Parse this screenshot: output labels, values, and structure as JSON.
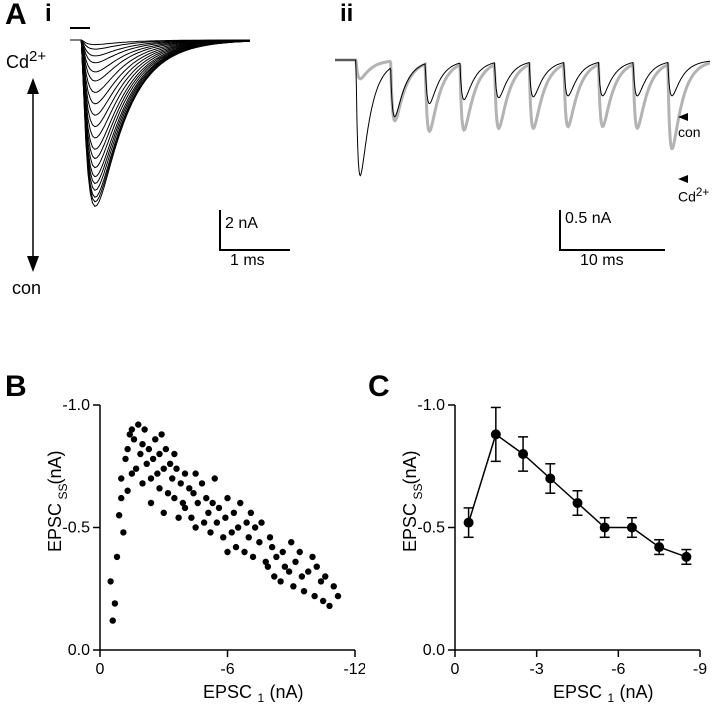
{
  "panelA": {
    "label": "A",
    "sub_i": "i",
    "sub_ii": "ii",
    "arrow_top_label": "Cd",
    "arrow_top_sup": "2+",
    "arrow_bottom_label": "con",
    "trace_annot_con": "con",
    "trace_annot_cd": "Cd",
    "trace_annot_cd_sup": "2+",
    "Ai": {
      "scalebar_v_value": "2 nA",
      "scalebar_h_value": "1 ms",
      "trace_count": 20,
      "trace_color": "#000000",
      "t_range_ms": 3.0,
      "peak_time_ms": 0.6,
      "amplitudes_nA": [
        0.2,
        0.4,
        0.7,
        1.0,
        1.4,
        1.8,
        2.3,
        2.8,
        3.3,
        3.8,
        4.3,
        4.8,
        5.2,
        5.6,
        6.0,
        6.3,
        6.6,
        6.9,
        7.1,
        7.3
      ],
      "tau_decay_ms": 0.5,
      "rise_ms": 0.15
    },
    "Aii": {
      "scalebar_v_value": "0.5 nA",
      "scalebar_h_value": "10 ms",
      "train_n_pulses": 10,
      "interval_ms": 3.3,
      "con_color": "#000000",
      "cd_color": "#b3b3b3",
      "con_amplitudes_nA": [
        1.35,
        0.6,
        0.48,
        0.44,
        0.42,
        0.41,
        0.4,
        0.4,
        0.4,
        0.4
      ],
      "cd_amplitudes_nA": [
        0.22,
        0.7,
        0.8,
        0.78,
        0.76,
        0.76,
        0.74,
        0.74,
        0.76,
        1.0
      ],
      "tau_decay_ms": 1.0,
      "rise_ms": 0.25
    }
  },
  "panelB": {
    "label": "B",
    "xlabel": "EPSC₁ (nA)",
    "ylabel": "EPSC_ss (nA)",
    "ylabel_plain": "EPSC",
    "ylabel_sub": "SS",
    "ylabel_unit": "(nA)",
    "xlim": [
      0,
      -12
    ],
    "ylim": [
      0.0,
      -1.0
    ],
    "xticks": [
      0,
      -6,
      -12
    ],
    "yticks": [
      0.0,
      -0.5,
      -1.0
    ],
    "marker_color": "#000000",
    "marker_radius": 3.2,
    "points": [
      [
        -0.5,
        -0.28
      ],
      [
        -0.6,
        -0.12
      ],
      [
        -0.7,
        -0.19
      ],
      [
        -0.8,
        -0.38
      ],
      [
        -0.9,
        -0.55
      ],
      [
        -1.0,
        -0.62
      ],
      [
        -1.0,
        -0.7
      ],
      [
        -1.1,
        -0.48
      ],
      [
        -1.2,
        -0.78
      ],
      [
        -1.3,
        -0.82
      ],
      [
        -1.3,
        -0.65
      ],
      [
        -1.4,
        -0.88
      ],
      [
        -1.5,
        -0.72
      ],
      [
        -1.5,
        -0.9
      ],
      [
        -1.6,
        -0.86
      ],
      [
        -1.7,
        -0.74
      ],
      [
        -1.8,
        -0.92
      ],
      [
        -1.9,
        -0.8
      ],
      [
        -2.0,
        -0.84
      ],
      [
        -2.0,
        -0.68
      ],
      [
        -2.1,
        -0.9
      ],
      [
        -2.2,
        -0.76
      ],
      [
        -2.3,
        -0.82
      ],
      [
        -2.4,
        -0.7
      ],
      [
        -2.4,
        -0.6
      ],
      [
        -2.5,
        -0.78
      ],
      [
        -2.6,
        -0.86
      ],
      [
        -2.7,
        -0.72
      ],
      [
        -2.8,
        -0.8
      ],
      [
        -2.8,
        -0.66
      ],
      [
        -2.9,
        -0.88
      ],
      [
        -3.0,
        -0.74
      ],
      [
        -3.0,
        -0.56
      ],
      [
        -3.1,
        -0.82
      ],
      [
        -3.2,
        -0.64
      ],
      [
        -3.3,
        -0.76
      ],
      [
        -3.4,
        -0.7
      ],
      [
        -3.5,
        -0.62
      ],
      [
        -3.5,
        -0.8
      ],
      [
        -3.6,
        -0.74
      ],
      [
        -3.7,
        -0.54
      ],
      [
        -3.8,
        -0.68
      ],
      [
        -3.9,
        -0.6
      ],
      [
        -4.0,
        -0.72
      ],
      [
        -4.0,
        -0.58
      ],
      [
        -4.2,
        -0.66
      ],
      [
        -4.3,
        -0.54
      ],
      [
        -4.4,
        -0.64
      ],
      [
        -4.5,
        -0.72
      ],
      [
        -4.5,
        -0.5
      ],
      [
        -4.6,
        -0.6
      ],
      [
        -4.8,
        -0.68
      ],
      [
        -4.9,
        -0.52
      ],
      [
        -5.0,
        -0.62
      ],
      [
        -5.1,
        -0.56
      ],
      [
        -5.2,
        -0.48
      ],
      [
        -5.3,
        -0.6
      ],
      [
        -5.4,
        -0.7
      ],
      [
        -5.5,
        -0.52
      ],
      [
        -5.6,
        -0.58
      ],
      [
        -5.8,
        -0.46
      ],
      [
        -5.9,
        -0.54
      ],
      [
        -6.0,
        -0.62
      ],
      [
        -6.0,
        -0.4
      ],
      [
        -6.2,
        -0.48
      ],
      [
        -6.3,
        -0.56
      ],
      [
        -6.4,
        -0.42
      ],
      [
        -6.5,
        -0.5
      ],
      [
        -6.6,
        -0.6
      ],
      [
        -6.8,
        -0.4
      ],
      [
        -6.9,
        -0.52
      ],
      [
        -7.0,
        -0.46
      ],
      [
        -7.1,
        -0.56
      ],
      [
        -7.2,
        -0.38
      ],
      [
        -7.3,
        -0.5
      ],
      [
        -7.5,
        -0.44
      ],
      [
        -7.6,
        -0.52
      ],
      [
        -7.8,
        -0.36
      ],
      [
        -7.9,
        -0.34
      ],
      [
        -8.0,
        -0.46
      ],
      [
        -8.1,
        -0.42
      ],
      [
        -8.2,
        -0.3
      ],
      [
        -8.3,
        -0.38
      ],
      [
        -8.5,
        -0.28
      ],
      [
        -8.6,
        -0.4
      ],
      [
        -8.7,
        -0.34
      ],
      [
        -8.9,
        -0.32
      ],
      [
        -9.0,
        -0.44
      ],
      [
        -9.1,
        -0.26
      ],
      [
        -9.2,
        -0.36
      ],
      [
        -9.4,
        -0.4
      ],
      [
        -9.5,
        -0.3
      ],
      [
        -9.6,
        -0.24
      ],
      [
        -9.8,
        -0.32
      ],
      [
        -10.0,
        -0.38
      ],
      [
        -10.1,
        -0.22
      ],
      [
        -10.2,
        -0.34
      ],
      [
        -10.4,
        -0.28
      ],
      [
        -10.5,
        -0.2
      ],
      [
        -10.6,
        -0.3
      ],
      [
        -10.8,
        -0.18
      ],
      [
        -11.0,
        -0.26
      ],
      [
        -11.2,
        -0.22
      ]
    ]
  },
  "panelC": {
    "label": "C",
    "xlabel": "EPSC₁ (nA)",
    "ylabel_plain": "EPSC",
    "ylabel_sub": "SS",
    "ylabel_unit": "(nA)",
    "xlim": [
      0,
      -9
    ],
    "ylim": [
      0.0,
      -1.0
    ],
    "xticks": [
      0,
      -3,
      -6,
      -9
    ],
    "yticks": [
      0.0,
      -0.5,
      -1.0
    ],
    "marker_color": "#000000",
    "marker_radius": 5,
    "line_width": 1.5,
    "points": [
      {
        "x": -0.5,
        "y": -0.52,
        "err": 0.06
      },
      {
        "x": -1.5,
        "y": -0.88,
        "err": 0.11
      },
      {
        "x": -2.5,
        "y": -0.8,
        "err": 0.07
      },
      {
        "x": -3.5,
        "y": -0.7,
        "err": 0.06
      },
      {
        "x": -4.5,
        "y": -0.6,
        "err": 0.05
      },
      {
        "x": -5.5,
        "y": -0.5,
        "err": 0.04
      },
      {
        "x": -6.5,
        "y": -0.5,
        "err": 0.04
      },
      {
        "x": -7.5,
        "y": -0.42,
        "err": 0.03
      },
      {
        "x": -8.5,
        "y": -0.38,
        "err": 0.03
      }
    ]
  }
}
